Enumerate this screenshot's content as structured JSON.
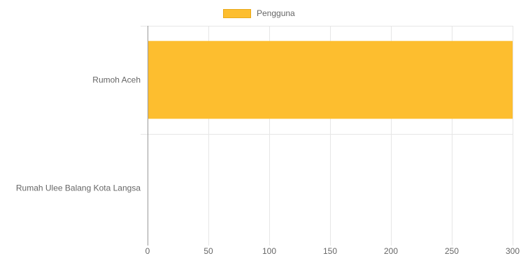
{
  "chart_data": {
    "type": "bar",
    "orientation": "horizontal",
    "categories": [
      "Rumoh Aceh",
      "Rumah Ulee Balang Kota Langsa"
    ],
    "series": [
      {
        "name": "Pengguna",
        "values": [
          300,
          0
        ],
        "color": "#fdbe2f"
      }
    ],
    "xlim": [
      0,
      300
    ],
    "x_ticks": [
      "0",
      "50",
      "100",
      "150",
      "200",
      "250",
      "300"
    ],
    "grid": true,
    "legend_position": "top"
  }
}
